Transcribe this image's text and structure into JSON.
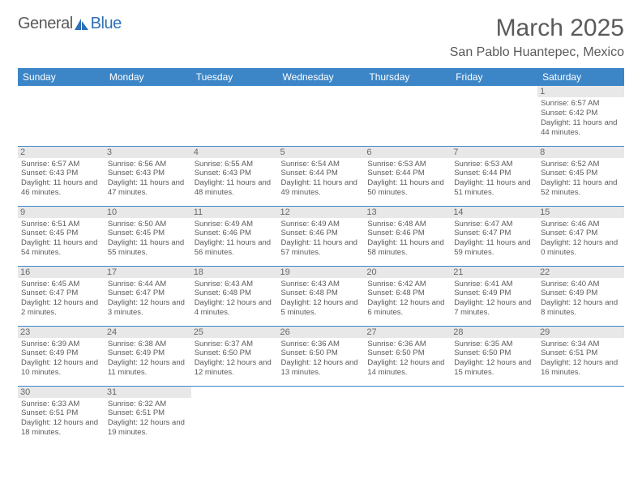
{
  "logo": {
    "part1": "General",
    "part2": "Blue"
  },
  "title": "March 2025",
  "location": "San Pablo Huantepec, Mexico",
  "colors": {
    "header_bg": "#3c86c8",
    "header_text": "#ffffff",
    "border": "#3c86c8",
    "daynum_bg": "#e8e8e8",
    "text": "#5a5a5a",
    "logo_gray": "#5a5a5a",
    "logo_blue": "#2e6fb5"
  },
  "weekdays": [
    "Sunday",
    "Monday",
    "Tuesday",
    "Wednesday",
    "Thursday",
    "Friday",
    "Saturday"
  ],
  "weeks": [
    [
      null,
      null,
      null,
      null,
      null,
      null,
      {
        "d": "1",
        "sr": "6:57 AM",
        "ss": "6:42 PM",
        "dl": "11 hours and 44 minutes."
      }
    ],
    [
      {
        "d": "2",
        "sr": "6:57 AM",
        "ss": "6:43 PM",
        "dl": "11 hours and 46 minutes."
      },
      {
        "d": "3",
        "sr": "6:56 AM",
        "ss": "6:43 PM",
        "dl": "11 hours and 47 minutes."
      },
      {
        "d": "4",
        "sr": "6:55 AM",
        "ss": "6:43 PM",
        "dl": "11 hours and 48 minutes."
      },
      {
        "d": "5",
        "sr": "6:54 AM",
        "ss": "6:44 PM",
        "dl": "11 hours and 49 minutes."
      },
      {
        "d": "6",
        "sr": "6:53 AM",
        "ss": "6:44 PM",
        "dl": "11 hours and 50 minutes."
      },
      {
        "d": "7",
        "sr": "6:53 AM",
        "ss": "6:44 PM",
        "dl": "11 hours and 51 minutes."
      },
      {
        "d": "8",
        "sr": "6:52 AM",
        "ss": "6:45 PM",
        "dl": "11 hours and 52 minutes."
      }
    ],
    [
      {
        "d": "9",
        "sr": "6:51 AM",
        "ss": "6:45 PM",
        "dl": "11 hours and 54 minutes."
      },
      {
        "d": "10",
        "sr": "6:50 AM",
        "ss": "6:45 PM",
        "dl": "11 hours and 55 minutes."
      },
      {
        "d": "11",
        "sr": "6:49 AM",
        "ss": "6:46 PM",
        "dl": "11 hours and 56 minutes."
      },
      {
        "d": "12",
        "sr": "6:49 AM",
        "ss": "6:46 PM",
        "dl": "11 hours and 57 minutes."
      },
      {
        "d": "13",
        "sr": "6:48 AM",
        "ss": "6:46 PM",
        "dl": "11 hours and 58 minutes."
      },
      {
        "d": "14",
        "sr": "6:47 AM",
        "ss": "6:47 PM",
        "dl": "11 hours and 59 minutes."
      },
      {
        "d": "15",
        "sr": "6:46 AM",
        "ss": "6:47 PM",
        "dl": "12 hours and 0 minutes."
      }
    ],
    [
      {
        "d": "16",
        "sr": "6:45 AM",
        "ss": "6:47 PM",
        "dl": "12 hours and 2 minutes."
      },
      {
        "d": "17",
        "sr": "6:44 AM",
        "ss": "6:47 PM",
        "dl": "12 hours and 3 minutes."
      },
      {
        "d": "18",
        "sr": "6:43 AM",
        "ss": "6:48 PM",
        "dl": "12 hours and 4 minutes."
      },
      {
        "d": "19",
        "sr": "6:43 AM",
        "ss": "6:48 PM",
        "dl": "12 hours and 5 minutes."
      },
      {
        "d": "20",
        "sr": "6:42 AM",
        "ss": "6:48 PM",
        "dl": "12 hours and 6 minutes."
      },
      {
        "d": "21",
        "sr": "6:41 AM",
        "ss": "6:49 PM",
        "dl": "12 hours and 7 minutes."
      },
      {
        "d": "22",
        "sr": "6:40 AM",
        "ss": "6:49 PM",
        "dl": "12 hours and 8 minutes."
      }
    ],
    [
      {
        "d": "23",
        "sr": "6:39 AM",
        "ss": "6:49 PM",
        "dl": "12 hours and 10 minutes."
      },
      {
        "d": "24",
        "sr": "6:38 AM",
        "ss": "6:49 PM",
        "dl": "12 hours and 11 minutes."
      },
      {
        "d": "25",
        "sr": "6:37 AM",
        "ss": "6:50 PM",
        "dl": "12 hours and 12 minutes."
      },
      {
        "d": "26",
        "sr": "6:36 AM",
        "ss": "6:50 PM",
        "dl": "12 hours and 13 minutes."
      },
      {
        "d": "27",
        "sr": "6:36 AM",
        "ss": "6:50 PM",
        "dl": "12 hours and 14 minutes."
      },
      {
        "d": "28",
        "sr": "6:35 AM",
        "ss": "6:50 PM",
        "dl": "12 hours and 15 minutes."
      },
      {
        "d": "29",
        "sr": "6:34 AM",
        "ss": "6:51 PM",
        "dl": "12 hours and 16 minutes."
      }
    ],
    [
      {
        "d": "30",
        "sr": "6:33 AM",
        "ss": "6:51 PM",
        "dl": "12 hours and 18 minutes."
      },
      {
        "d": "31",
        "sr": "6:32 AM",
        "ss": "6:51 PM",
        "dl": "12 hours and 19 minutes."
      },
      null,
      null,
      null,
      null,
      null
    ]
  ],
  "labels": {
    "sunrise": "Sunrise:",
    "sunset": "Sunset:",
    "daylight": "Daylight:"
  }
}
